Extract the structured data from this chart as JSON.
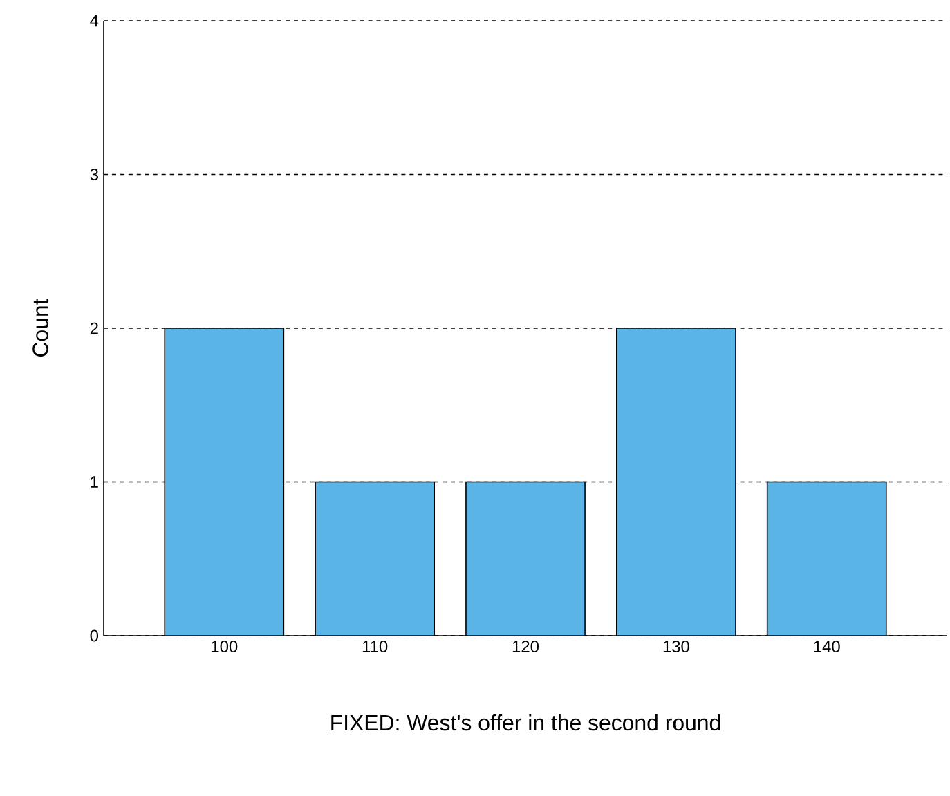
{
  "chart_data": {
    "type": "bar",
    "xlabel": "FIXED: West's offer in the second round",
    "ylabel": "Count",
    "categories": [
      "100",
      "110",
      "120",
      "130",
      "140"
    ],
    "values": [
      2,
      1,
      1,
      2,
      1
    ],
    "color": "#5ab4e6",
    "ylim": [
      0,
      4
    ],
    "yticks": [
      0,
      1,
      2,
      3,
      4
    ],
    "grid": "y"
  }
}
